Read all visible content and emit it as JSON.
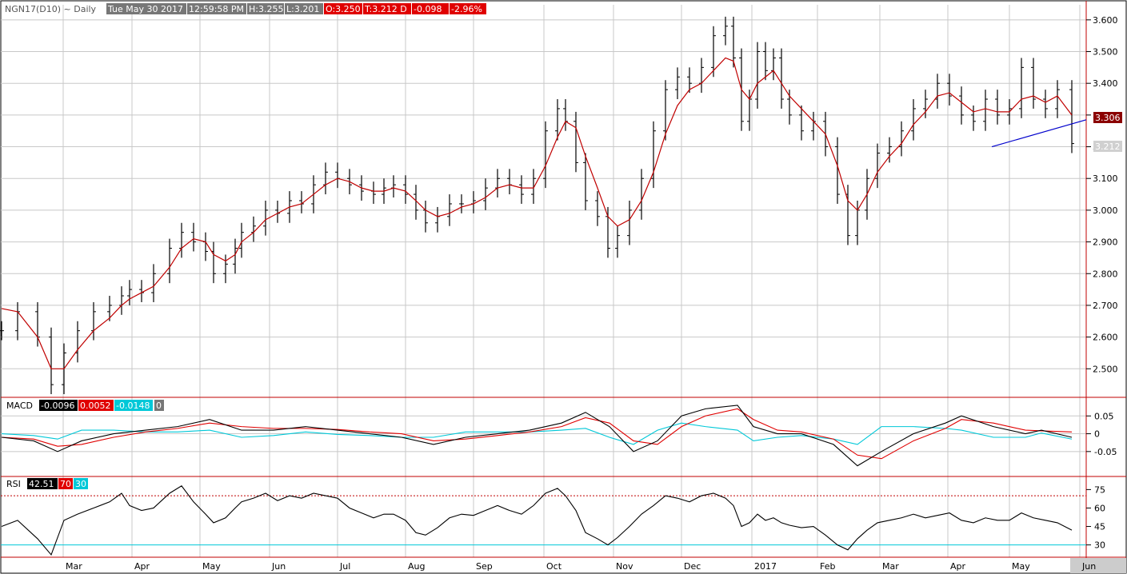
{
  "header": {
    "symbol": "NGN17(D10) ~ Daily",
    "date": "Tue May 30 2017",
    "time": "12:59:58 PM",
    "high": "H:3.255",
    "low": "L:3.201",
    "open": "O:3.250",
    "last": "T:3.212 D",
    "change": "-0.098",
    "change_pct": "-2.96%"
  },
  "colors": {
    "price_bar": "#000000",
    "moving_average": "#c00000",
    "trendline": "#0000cc",
    "macd": "#000000",
    "signal": "#e00000",
    "histogram": "#00c8d8",
    "rsi": "#000000",
    "rsi_upper_band": "#c00000",
    "rsi_lower_band": "#00c8d8",
    "grid": "#c8c8c8",
    "neg_label_bg": "#e00000",
    "axis_border": "#c00000"
  },
  "price_tags": {
    "ma_value": "3.306",
    "last_value": "3.212"
  },
  "macd_panel": {
    "label": "MACD",
    "macd_value": "-0.0096",
    "signal_value": "0.0052",
    "hist_value": "-0.0148",
    "extra_value": "0"
  },
  "rsi_panel": {
    "label": "RSI",
    "rsi_value": "42.51",
    "upper": "70",
    "lower": "30"
  },
  "chart_data": [
    {
      "type": "ohlc",
      "title": "NGN17(D10) ~ Daily",
      "x_ticks": [
        "Mar",
        "Apr",
        "May",
        "Jun",
        "Jul",
        "Aug",
        "Sep",
        "Oct",
        "Nov",
        "Dec",
        "2017",
        "Feb",
        "Mar",
        "Apr",
        "May",
        "Jun"
      ],
      "y_ticks": [
        "3.600",
        "3.500",
        "3.400",
        "3.300",
        "3.200",
        "3.100",
        "3.000",
        "2.900",
        "2.800",
        "2.700",
        "2.600",
        "2.500"
      ],
      "ylim": [
        2.41,
        3.65
      ],
      "series": [
        {
          "name": "Close",
          "x": [
            0,
            20,
            45,
            62,
            78,
            95,
            115,
            135,
            150,
            160,
            175,
            190,
            210,
            225,
            240,
            255,
            265,
            280,
            292,
            300,
            315,
            330,
            345,
            360,
            375,
            390,
            405,
            420,
            435,
            450,
            465,
            478,
            490,
            505,
            518,
            530,
            545,
            560,
            575,
            590,
            605,
            620,
            635,
            650,
            665,
            680,
            695,
            705,
            718,
            730,
            745,
            758,
            770,
            785,
            800,
            815,
            830,
            845,
            860,
            875,
            890,
            905,
            915,
            925,
            935,
            945,
            955,
            965,
            975,
            985,
            1000,
            1015,
            1030,
            1045,
            1058,
            1070,
            1082,
            1095,
            1110,
            1125,
            1140,
            1155,
            1170,
            1185,
            1200,
            1215,
            1230,
            1245,
            1260,
            1275,
            1290,
            1305,
            1320,
            1338
          ],
          "values": [
            2.62,
            2.68,
            2.6,
            2.45,
            2.55,
            2.62,
            2.68,
            2.7,
            2.73,
            2.75,
            2.74,
            2.8,
            2.88,
            2.93,
            2.9,
            2.87,
            2.8,
            2.83,
            2.88,
            2.93,
            2.95,
            3.0,
            2.99,
            3.03,
            3.02,
            3.08,
            3.12,
            3.1,
            3.08,
            3.06,
            3.05,
            3.07,
            3.08,
            3.05,
            3.0,
            2.96,
            2.98,
            3.02,
            3.02,
            3.03,
            3.07,
            3.1,
            3.08,
            3.05,
            3.1,
            3.25,
            3.32,
            3.28,
            3.15,
            3.03,
            2.98,
            2.88,
            2.92,
            3.0,
            3.1,
            3.25,
            3.38,
            3.42,
            3.4,
            3.45,
            3.55,
            3.58,
            3.48,
            3.28,
            3.35,
            3.5,
            3.44,
            3.48,
            3.35,
            3.3,
            3.25,
            3.28,
            3.2,
            3.05,
            2.92,
            3.0,
            3.1,
            3.18,
            3.2,
            3.25,
            3.32,
            3.35,
            3.4,
            3.36,
            3.3,
            3.28,
            3.35,
            3.3,
            3.32,
            3.45,
            3.35,
            3.32,
            3.38,
            3.21
          ]
        },
        {
          "name": "Moving Average",
          "x": [
            0,
            20,
            45,
            62,
            78,
            95,
            115,
            135,
            150,
            160,
            175,
            190,
            210,
            225,
            240,
            255,
            265,
            280,
            292,
            300,
            315,
            330,
            345,
            360,
            375,
            390,
            405,
            420,
            435,
            450,
            465,
            478,
            490,
            505,
            518,
            530,
            545,
            560,
            575,
            590,
            605,
            620,
            635,
            650,
            665,
            680,
            695,
            705,
            718,
            730,
            745,
            758,
            770,
            785,
            800,
            815,
            830,
            845,
            860,
            875,
            890,
            905,
            915,
            925,
            935,
            945,
            955,
            965,
            975,
            985,
            1000,
            1015,
            1030,
            1045,
            1058,
            1070,
            1082,
            1095,
            1110,
            1125,
            1140,
            1155,
            1170,
            1185,
            1200,
            1215,
            1230,
            1245,
            1260,
            1275,
            1290,
            1305,
            1320,
            1338
          ],
          "values": [
            2.69,
            2.68,
            2.6,
            2.5,
            2.5,
            2.56,
            2.62,
            2.66,
            2.7,
            2.72,
            2.74,
            2.76,
            2.82,
            2.88,
            2.91,
            2.9,
            2.86,
            2.84,
            2.86,
            2.9,
            2.93,
            2.97,
            2.99,
            3.01,
            3.02,
            3.05,
            3.08,
            3.1,
            3.09,
            3.07,
            3.06,
            3.06,
            3.07,
            3.06,
            3.03,
            3.0,
            2.98,
            2.99,
            3.01,
            3.02,
            3.04,
            3.07,
            3.08,
            3.07,
            3.07,
            3.14,
            3.23,
            3.28,
            3.26,
            3.17,
            3.07,
            2.98,
            2.95,
            2.97,
            3.03,
            3.12,
            3.24,
            3.33,
            3.38,
            3.4,
            3.44,
            3.48,
            3.47,
            3.38,
            3.35,
            3.4,
            3.42,
            3.44,
            3.4,
            3.36,
            3.32,
            3.28,
            3.24,
            3.14,
            3.03,
            3.0,
            3.05,
            3.12,
            3.17,
            3.21,
            3.27,
            3.31,
            3.36,
            3.37,
            3.34,
            3.31,
            3.32,
            3.31,
            3.31,
            3.35,
            3.36,
            3.34,
            3.36,
            3.3
          ]
        }
      ]
    },
    {
      "type": "line",
      "title": "MACD",
      "y_ticks": [
        "0.05",
        "0",
        "-0.05"
      ],
      "ylim": [
        -0.12,
        0.1
      ],
      "series": [
        {
          "name": "MACD",
          "x": [
            0,
            40,
            70,
            100,
            140,
            180,
            220,
            260,
            300,
            340,
            380,
            420,
            460,
            500,
            540,
            580,
            620,
            660,
            700,
            730,
            760,
            790,
            820,
            850,
            880,
            920,
            940,
            970,
            1000,
            1040,
            1070,
            1100,
            1140,
            1180,
            1200,
            1240,
            1280,
            1300,
            1338
          ],
          "values": [
            -0.01,
            -0.02,
            -0.05,
            -0.02,
            0.0,
            0.01,
            0.02,
            0.04,
            0.01,
            0.01,
            0.02,
            0.01,
            0.0,
            -0.01,
            -0.03,
            -0.01,
            0.0,
            0.01,
            0.03,
            0.06,
            0.02,
            -0.05,
            -0.02,
            0.05,
            0.07,
            0.08,
            0.02,
            0.0,
            0.0,
            -0.03,
            -0.09,
            -0.05,
            0.0,
            0.03,
            0.05,
            0.02,
            0.0,
            0.01,
            -0.01
          ]
        },
        {
          "name": "Signal",
          "x": [
            0,
            40,
            70,
            100,
            140,
            180,
            220,
            260,
            300,
            340,
            380,
            420,
            460,
            500,
            540,
            580,
            620,
            660,
            700,
            730,
            760,
            790,
            820,
            850,
            880,
            920,
            940,
            970,
            1000,
            1040,
            1070,
            1100,
            1140,
            1180,
            1200,
            1240,
            1280,
            1300,
            1338
          ],
          "values": [
            -0.01,
            -0.015,
            -0.035,
            -0.03,
            -0.01,
            0.005,
            0.015,
            0.03,
            0.02,
            0.015,
            0.015,
            0.012,
            0.005,
            0.0,
            -0.02,
            -0.015,
            -0.005,
            0.005,
            0.02,
            0.045,
            0.03,
            -0.02,
            -0.03,
            0.02,
            0.05,
            0.07,
            0.04,
            0.01,
            0.005,
            -0.015,
            -0.06,
            -0.07,
            -0.02,
            0.015,
            0.04,
            0.03,
            0.01,
            0.008,
            0.005
          ]
        },
        {
          "name": "Histogram",
          "x": [
            0,
            40,
            70,
            100,
            140,
            180,
            220,
            260,
            300,
            340,
            380,
            420,
            460,
            500,
            540,
            580,
            620,
            660,
            700,
            730,
            760,
            790,
            820,
            850,
            880,
            920,
            940,
            970,
            1000,
            1040,
            1070,
            1100,
            1140,
            1180,
            1200,
            1240,
            1280,
            1300,
            1338
          ],
          "values": [
            0.0,
            -0.005,
            -0.015,
            0.01,
            0.01,
            0.005,
            0.005,
            0.01,
            -0.01,
            -0.005,
            0.005,
            -0.002,
            -0.005,
            -0.01,
            -0.01,
            0.005,
            0.005,
            0.005,
            0.01,
            0.015,
            -0.01,
            -0.03,
            0.01,
            0.03,
            0.02,
            0.01,
            -0.02,
            -0.01,
            -0.005,
            -0.015,
            -0.03,
            0.02,
            0.02,
            0.015,
            0.01,
            -0.01,
            -0.01,
            0.002,
            -0.015
          ]
        }
      ]
    },
    {
      "type": "line",
      "title": "RSI",
      "y_ticks": [
        "75",
        "60",
        "45",
        "30"
      ],
      "ylim": [
        20,
        85
      ],
      "series": [
        {
          "name": "RSI",
          "x": [
            0,
            20,
            45,
            62,
            78,
            95,
            115,
            135,
            150,
            160,
            175,
            190,
            210,
            225,
            240,
            255,
            265,
            280,
            292,
            300,
            315,
            330,
            345,
            360,
            375,
            390,
            405,
            420,
            435,
            450,
            465,
            478,
            490,
            505,
            518,
            530,
            545,
            560,
            575,
            590,
            605,
            620,
            635,
            650,
            665,
            680,
            695,
            705,
            718,
            730,
            745,
            758,
            770,
            785,
            800,
            815,
            830,
            845,
            860,
            875,
            890,
            905,
            915,
            925,
            935,
            945,
            955,
            965,
            975,
            985,
            1000,
            1015,
            1030,
            1045,
            1058,
            1070,
            1082,
            1095,
            1110,
            1125,
            1140,
            1155,
            1170,
            1185,
            1200,
            1215,
            1230,
            1245,
            1260,
            1275,
            1290,
            1305,
            1320,
            1338
          ],
          "values": [
            45,
            50,
            35,
            22,
            50,
            55,
            60,
            65,
            72,
            62,
            58,
            60,
            72,
            78,
            65,
            55,
            48,
            52,
            60,
            65,
            68,
            72,
            66,
            70,
            68,
            72,
            70,
            68,
            60,
            56,
            52,
            55,
            55,
            50,
            40,
            38,
            44,
            52,
            55,
            54,
            58,
            62,
            58,
            55,
            62,
            72,
            76,
            70,
            58,
            40,
            35,
            30,
            36,
            45,
            55,
            62,
            70,
            68,
            65,
            70,
            72,
            68,
            62,
            45,
            48,
            55,
            50,
            52,
            48,
            46,
            44,
            45,
            38,
            30,
            26,
            35,
            42,
            48,
            50,
            52,
            55,
            52,
            54,
            56,
            50,
            48,
            52,
            50,
            50,
            56,
            52,
            50,
            48,
            42
          ]
        }
      ]
    }
  ]
}
